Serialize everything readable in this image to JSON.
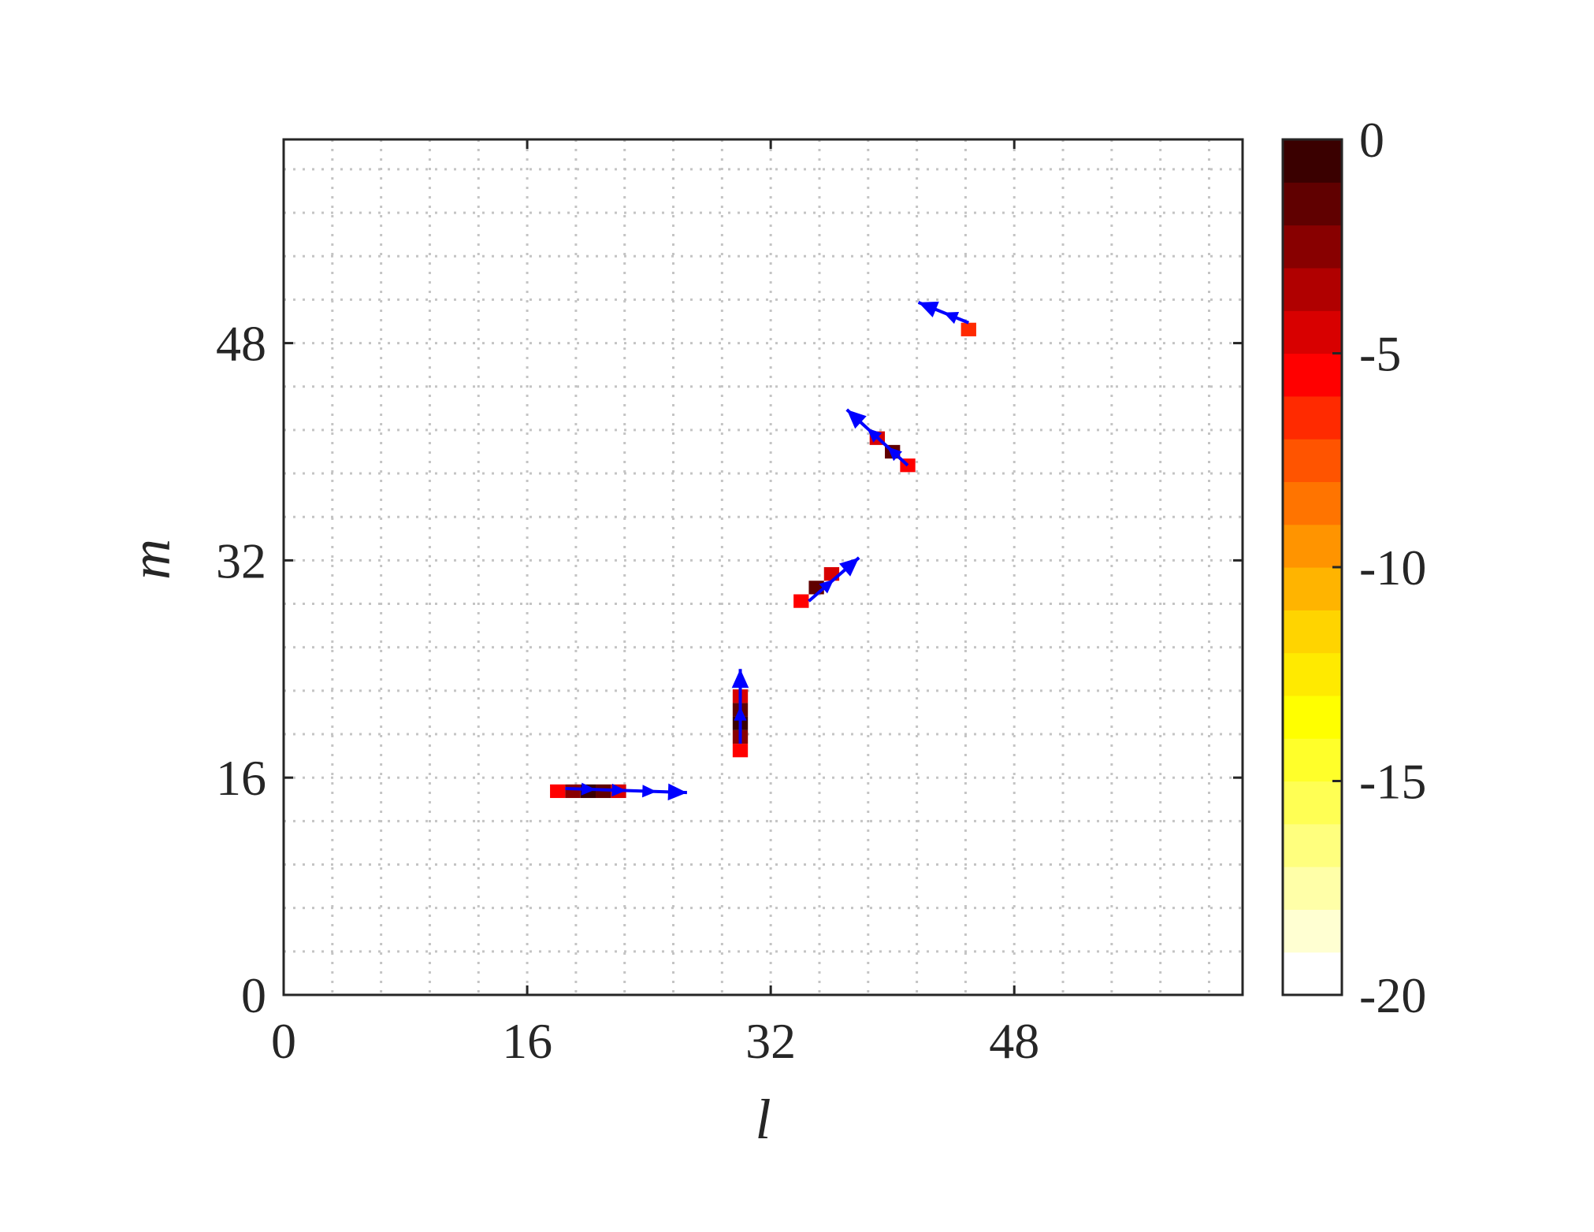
{
  "chart_data": {
    "type": "heatmap",
    "title": "",
    "xlabel": "l",
    "ylabel": "m",
    "xlim": [
      0,
      63
    ],
    "ylim": [
      0,
      63
    ],
    "x_ticks": [
      0,
      16,
      32,
      48
    ],
    "y_ticks": [
      0,
      16,
      32,
      48
    ],
    "x_tick_labels": [
      "0",
      "16",
      "32",
      "48"
    ],
    "y_tick_labels": [
      "0",
      "16",
      "32",
      "48"
    ],
    "grid": true,
    "grid_step": 3.2,
    "colorbar": {
      "range": [
        -20,
        0
      ],
      "levels": 20,
      "ticks": [
        "0",
        "-5",
        "-10",
        "-15",
        "-20"
      ],
      "tick_values": [
        0,
        -5,
        -10,
        -15,
        -20
      ],
      "colors": [
        "#ffffff",
        "#ffffd2",
        "#ffffa8",
        "#ffff7e",
        "#ffff54",
        "#ffff2a",
        "#ffff00",
        "#ffea00",
        "#ffd400",
        "#ffb400",
        "#ff9400",
        "#ff7400",
        "#ff5400",
        "#ff2a00",
        "#ff0000",
        "#d80000",
        "#b00000",
        "#880000",
        "#600000",
        "#3a0000"
      ]
    },
    "cells": [
      {
        "l": 18,
        "m": 15,
        "value": -6
      },
      {
        "l": 19,
        "m": 15,
        "value": -3
      },
      {
        "l": 20,
        "m": 15,
        "value": -1
      },
      {
        "l": 21,
        "m": 15,
        "value": -2
      },
      {
        "l": 22,
        "m": 15,
        "value": -5
      },
      {
        "l": 30,
        "m": 18,
        "value": -6
      },
      {
        "l": 30,
        "m": 19,
        "value": -3
      },
      {
        "l": 30,
        "m": 20,
        "value": -1
      },
      {
        "l": 30,
        "m": 21,
        "value": -2
      },
      {
        "l": 30,
        "m": 22,
        "value": -5
      },
      {
        "l": 34,
        "m": 29,
        "value": -6
      },
      {
        "l": 35,
        "m": 30,
        "value": -2
      },
      {
        "l": 36,
        "m": 31,
        "value": -5
      },
      {
        "l": 39,
        "m": 41,
        "value": -5
      },
      {
        "l": 40,
        "m": 40,
        "value": -2
      },
      {
        "l": 41,
        "m": 39,
        "value": -6
      },
      {
        "l": 45,
        "m": 49,
        "value": -7
      }
    ],
    "vectors": [
      {
        "x": 18.5,
        "y": 15.2,
        "u": 8.0,
        "v": -0.3
      },
      {
        "x": 30.0,
        "y": 18.5,
        "u": 0.0,
        "v": 5.5
      },
      {
        "x": 34.5,
        "y": 29.0,
        "u": 3.3,
        "v": 3.2
      },
      {
        "x": 41.0,
        "y": 39.0,
        "u": -4.0,
        "v": 4.1
      },
      {
        "x": 45.0,
        "y": 49.5,
        "u": -3.3,
        "v": 1.5
      }
    ],
    "arrow_color": "#0000ff"
  }
}
